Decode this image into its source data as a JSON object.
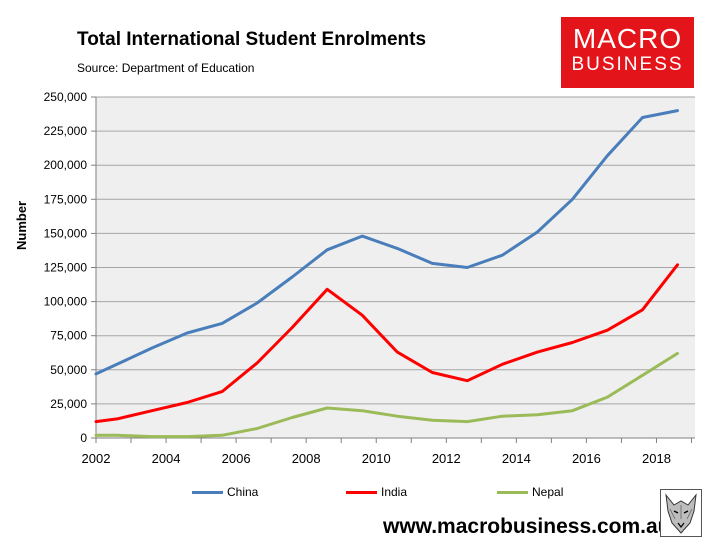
{
  "header": {
    "title": "Total International Student Enrolments",
    "source": "Source: Department of Education"
  },
  "logo": {
    "line1": "MACRO",
    "line2": "BUSINESS"
  },
  "footer": {
    "url": "www.macrobusiness.com.au"
  },
  "colors": {
    "china": "#4a7ebb",
    "india": "#ff0000",
    "nepal": "#9bbb59",
    "plot_bg": "#efefef",
    "logo_bg": "#e4141b"
  },
  "chart_data": {
    "type": "line",
    "title": "Total International Student Enrolments",
    "xlabel": "",
    "ylabel": "Number",
    "x": [
      2002,
      2002.6,
      2003.6,
      2004.6,
      2005.6,
      2006.6,
      2007.6,
      2008.6,
      2009.6,
      2010.6,
      2011.6,
      2012.6,
      2013.6,
      2014.6,
      2015.6,
      2016.6,
      2017.6,
      2018.6
    ],
    "xlim": [
      2002,
      2019.1
    ],
    "ylim": [
      0,
      250000
    ],
    "x_ticks": [
      2002,
      2004,
      2006,
      2008,
      2010,
      2012,
      2014,
      2016,
      2018
    ],
    "x_tick_labels": [
      "2002",
      "2004",
      "2006",
      "2008",
      "2010",
      "2012",
      "2014",
      "2016",
      "2018"
    ],
    "y_ticks": [
      0,
      25000,
      50000,
      75000,
      100000,
      125000,
      150000,
      175000,
      200000,
      225000,
      250000
    ],
    "y_tick_labels": [
      "0",
      "25,000",
      "50,000",
      "75,000",
      "100,000",
      "125,000",
      "150,000",
      "175,000",
      "200,000",
      "225,000",
      "250,000"
    ],
    "grid": "horizontal",
    "legend_position": "bottom",
    "series": [
      {
        "name": "China",
        "values": [
          47000,
          54000,
          66000,
          77000,
          84000,
          99000,
          118000,
          138000,
          148000,
          139000,
          128000,
          125000,
          134000,
          151000,
          175000,
          207000,
          235000,
          240000
        ]
      },
      {
        "name": "India",
        "values": [
          12000,
          14000,
          20000,
          26000,
          34000,
          55000,
          81000,
          109000,
          90000,
          63000,
          48000,
          42000,
          54000,
          63000,
          70000,
          79000,
          94000,
          127000
        ]
      },
      {
        "name": "Nepal",
        "values": [
          2000,
          2000,
          1000,
          1000,
          2000,
          7000,
          15000,
          22000,
          20000,
          16000,
          13000,
          12000,
          16000,
          17000,
          20000,
          30000,
          46000,
          62000
        ]
      }
    ]
  }
}
